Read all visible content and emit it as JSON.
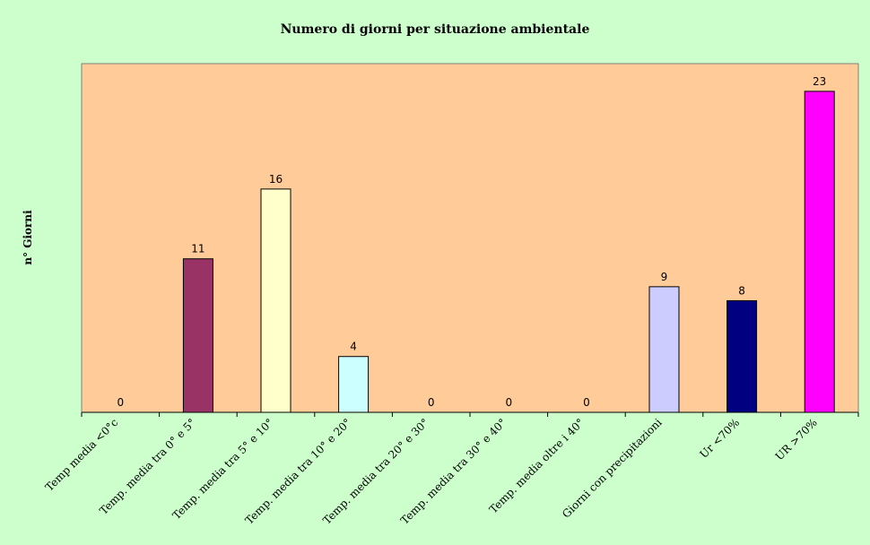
{
  "chart_data": {
    "type": "bar",
    "title": "Numero di giorni per situazione ambientale",
    "xlabel": "",
    "ylabel": "n° Giorni",
    "ylim": [
      0,
      25
    ],
    "grid": false,
    "legend": "none",
    "categories": [
      "Temp media <0°c",
      "Temp. media tra 0° e 5°",
      "Temp. media tra 5° e 10°",
      "Temp. media tra 10° e 20°",
      "Temp. media tra 20° e 30°",
      "Temp. media tra 30° e 40°",
      "Temp. media oltre i 40°",
      "Giorni con precipitazioni",
      "Ur <70%",
      "UR >70%"
    ],
    "values": [
      0,
      11,
      16,
      4,
      0,
      0,
      0,
      9,
      8,
      23
    ],
    "bar_colors": [
      "#993366",
      "#993366",
      "#ffffcc",
      "#ccffff",
      "#660066",
      "#ff8080",
      "#0066cc",
      "#ccccff",
      "#000080",
      "#ff00ff"
    ],
    "colors": {
      "background": "#ccffcc",
      "plot_area": "#ffcc99"
    }
  }
}
